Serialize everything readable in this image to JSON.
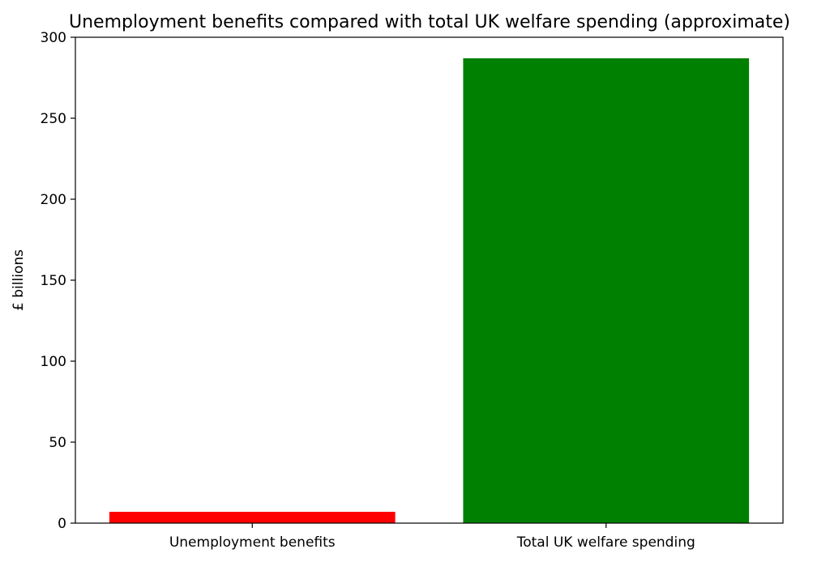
{
  "chart_data": {
    "type": "bar",
    "title": "Unemployment benefits compared with total UK welfare spending (approximate)",
    "xlabel": "",
    "ylabel": "£ billions",
    "categories": [
      "Unemployment benefits",
      "Total UK welfare spending"
    ],
    "values": [
      7,
      287
    ],
    "colors": [
      "#ff0000",
      "#008000"
    ],
    "ylim": [
      0,
      300
    ],
    "yticks": [
      0,
      50,
      100,
      150,
      200,
      250,
      300
    ],
    "grid": false,
    "legend": "none"
  }
}
